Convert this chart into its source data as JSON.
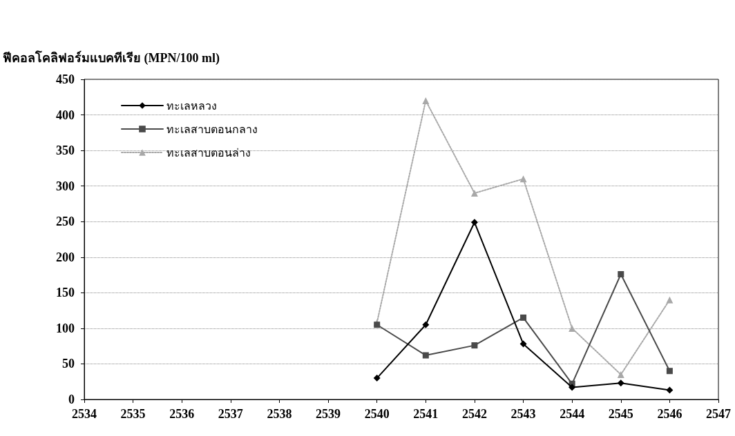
{
  "chart_data": {
    "type": "line",
    "ylabel": "ฟีคอลโคลิฟอร์มแบคทีเรีย (MPN/100 ml)",
    "x": [
      2540,
      2541,
      2542,
      2543,
      2544,
      2545,
      2546
    ],
    "xlim": [
      2534,
      2547
    ],
    "xticks": [
      2534,
      2535,
      2536,
      2537,
      2538,
      2539,
      2540,
      2541,
      2542,
      2543,
      2544,
      2545,
      2546,
      2547
    ],
    "ylim": [
      0,
      450
    ],
    "yticks": [
      0,
      50,
      100,
      150,
      200,
      250,
      300,
      350,
      400,
      450
    ],
    "grid": "y",
    "legend": "top left",
    "series": [
      {
        "name": "ทะเลหลวง",
        "color": "#000000",
        "marker": "diamond",
        "line_style": "solid",
        "values": [
          30,
          105,
          249,
          78,
          17,
          23,
          13
        ]
      },
      {
        "name": "ทะเลสาบตอนกลาง",
        "color": "#4a4a4a",
        "marker": "square",
        "line_style": "solid",
        "values": [
          105,
          62,
          76,
          115,
          22,
          176,
          40
        ]
      },
      {
        "name": "ทะเลสาบตอนล่าง",
        "color": "#a8a8a8",
        "marker": "triangle",
        "line_style": "dotted",
        "values": [
          108,
          420,
          290,
          310,
          100,
          35,
          140
        ]
      }
    ]
  }
}
